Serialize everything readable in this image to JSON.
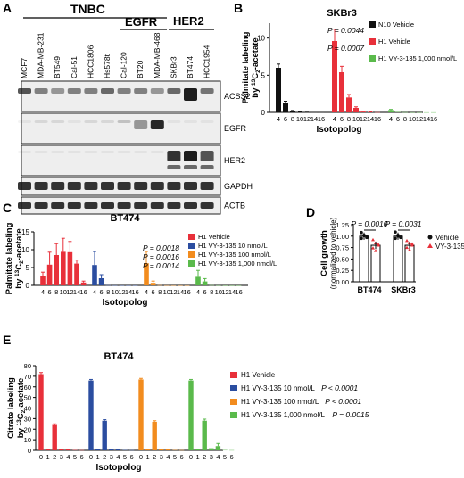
{
  "panels": {
    "A": {
      "letter": "A",
      "groups": [
        "TNBC",
        "EGFR",
        "HER2"
      ],
      "cell_lines": [
        "MCF7",
        "MDA-MB-231",
        "BT549",
        "Cal-51",
        "HCC1806",
        "Hs578t",
        "Cal-120",
        "BT20",
        "MDA-MB-468",
        "SKBr3",
        "BT474",
        "HCC1954"
      ],
      "blots": [
        "ACSS2",
        "EGFR",
        "HER2",
        "GAPDH",
        "ACTB"
      ]
    },
    "B": {
      "letter": "B"
    },
    "C": {
      "letter": "C"
    },
    "D": {
      "letter": "D"
    },
    "E": {
      "letter": "E"
    }
  },
  "colors": {
    "black": "#111111",
    "red": "#e8303a",
    "blue": "#2b4da0",
    "orange": "#f28c1e",
    "green": "#5aba4b",
    "gray": "#aaaaaa"
  },
  "chart_data": [
    {
      "panel": "B",
      "type": "bar",
      "title": "SKBr3",
      "ylabel_pre": "Palmitate labeling",
      "ylabel_by": "by ",
      "ylabel_sup": "13",
      "ylabel_c": "C",
      "ylabel_sub": "2",
      "ylabel_post": "-acetate",
      "xlabel": "Isotopolog",
      "ylim": [
        0,
        12
      ],
      "yticks": [
        0,
        5,
        10
      ],
      "categories": [
        "4",
        "6",
        "8",
        "10",
        "12",
        "14",
        "16"
      ],
      "series": [
        {
          "name": "N10 Vehicle",
          "color": "#111111",
          "values": [
            6.0,
            1.3,
            0.2,
            0.05,
            0.02,
            0.01,
            0.01
          ],
          "errors": [
            0.5,
            0.2,
            0.05,
            0.02,
            0.01,
            0,
            0
          ]
        },
        {
          "name": "H1 Vehicle",
          "color": "#e8303a",
          "values": [
            9.6,
            5.4,
            2.0,
            0.6,
            0.1,
            0.05,
            0.02
          ],
          "errors": [
            1.6,
            0.8,
            0.4,
            0.15,
            0.05,
            0.02,
            0
          ]
        },
        {
          "name": "H1 VY-3-135 1,000 nmol/L",
          "color": "#5aba4b",
          "values": [
            0.3,
            0.05,
            0.02,
            0.01,
            0.01,
            0.01,
            0.01
          ],
          "errors": [
            0.1,
            0,
            0,
            0,
            0,
            0,
            0
          ]
        }
      ],
      "pvalues": [
        {
          "label": "P = 0.0044"
        },
        {
          "label": "P = 0.0007"
        }
      ]
    },
    {
      "panel": "C",
      "type": "bar",
      "title": "BT474",
      "ylabel_pre": "Palmitate labeling",
      "ylabel_by": "by ",
      "ylabel_sup": "13",
      "ylabel_c": "C",
      "ylabel_sub": "2",
      "ylabel_post": "-acetate",
      "xlabel": "Isotopolog",
      "ylim": [
        0,
        15
      ],
      "yticks": [
        0,
        5,
        10,
        15
      ],
      "categories": [
        "4",
        "6",
        "8",
        "10",
        "12",
        "14",
        "16"
      ],
      "series": [
        {
          "name": "H1 Vehicle",
          "color": "#e8303a",
          "values": [
            2.5,
            5.8,
            8.5,
            9.4,
            9.3,
            6.1,
            0.8
          ],
          "errors": [
            1.2,
            3.5,
            3.2,
            3.8,
            3.0,
            1.0,
            0.4
          ]
        },
        {
          "name": "H1 VY-3-135 10 nmol/L",
          "color": "#2b4da0",
          "values": [
            5.7,
            2.0,
            0.05,
            0.02,
            0.01,
            0.01,
            0.01
          ],
          "errors": [
            3.8,
            1.0,
            0,
            0,
            0,
            0,
            0
          ]
        },
        {
          "name": "H1 VY-3-135 100 nmol/L",
          "color": "#f28c1e",
          "values": [
            6.2,
            0.7,
            0.05,
            0.02,
            0.01,
            0.01,
            0.01
          ],
          "errors": [
            3.3,
            0.5,
            0,
            0,
            0,
            0,
            0
          ]
        },
        {
          "name": "H1 VY-3-135 1,000 nmol/L",
          "color": "#5aba4b",
          "values": [
            2.4,
            1.1,
            0.05,
            0.02,
            0.01,
            0.01,
            0.01
          ],
          "errors": [
            1.8,
            0.8,
            0,
            0,
            0,
            0,
            0
          ]
        }
      ],
      "pvalues": [
        {
          "label": "P = 0.0018"
        },
        {
          "label": "P = 0.0016"
        },
        {
          "label": "P = 0.0014"
        }
      ]
    },
    {
      "panel": "D",
      "type": "bar",
      "ylabel": "Cell growth",
      "ylabel2": "(normalized to vehicle)",
      "ylim": [
        0,
        1.25
      ],
      "yticks": [
        "0.00",
        "0.25",
        "0.50",
        "0.75",
        "1.00",
        "1.25"
      ],
      "ytick_values": [
        0,
        0.25,
        0.5,
        0.75,
        1.0,
        1.25
      ],
      "categories": [
        "BT474",
        "SKBr3"
      ],
      "series": [
        {
          "name": "Vehicle",
          "color": "#111111",
          "values": [
            1.0,
            1.0
          ],
          "points": [
            [
              1.08,
              1.02,
              0.97,
              0.95,
              1.01,
              0.99
            ],
            [
              1.09,
              1.02,
              0.97,
              0.95,
              1.0,
              0.98
            ]
          ]
        },
        {
          "name": "VY-3-135",
          "color": "#e8303a",
          "values": [
            0.8,
            0.8
          ],
          "points": [
            [
              0.92,
              0.85,
              0.8,
              0.74,
              0.68,
              0.82
            ],
            [
              0.9,
              0.85,
              0.8,
              0.75,
              0.7,
              0.83
            ]
          ]
        }
      ],
      "pvalues": [
        {
          "label": "P = 0.0010"
        },
        {
          "label": "P = 0.0031"
        }
      ]
    },
    {
      "panel": "E",
      "type": "bar",
      "title": "BT474",
      "ylabel_pre": "Citrate labeling",
      "ylabel_by": "by ",
      "ylabel_sup": "13",
      "ylabel_c": "C",
      "ylabel_sub": "2",
      "ylabel_post": "-acetate",
      "xlabel": "Isotopolog",
      "ylim": [
        0,
        80
      ],
      "yticks": [
        0,
        10,
        20,
        30,
        40,
        50,
        60,
        70,
        80
      ],
      "categories": [
        "0",
        "1",
        "2",
        "3",
        "4",
        "5",
        "6"
      ],
      "series": [
        {
          "name": "H1 Vehicle",
          "color": "#e8303a",
          "pvalue": "",
          "values": [
            72,
            1.0,
            24,
            1.0,
            1.5,
            0.3,
            0.2
          ],
          "errors": [
            1.5,
            0,
            1.0,
            0,
            0,
            0,
            0
          ]
        },
        {
          "name": "H1 VY-3-135 10 nmol/L",
          "color": "#2b4da0",
          "pvalue": "P < 0.0001",
          "values": [
            66,
            1.5,
            28,
            1.5,
            1.5,
            0.3,
            0.2
          ],
          "errors": [
            1.0,
            0,
            1.0,
            0,
            0,
            0,
            0
          ]
        },
        {
          "name": "H1 VY-3-135 100 nmol/L",
          "color": "#f28c1e",
          "pvalue": "P < 0.0001",
          "values": [
            67,
            1.5,
            27,
            1.2,
            1.5,
            0.3,
            0.2
          ],
          "errors": [
            1.0,
            0,
            1.0,
            0,
            0,
            0,
            0
          ]
        },
        {
          "name": "H1 VY-3-135 1,000 nmol/L",
          "color": "#5aba4b",
          "pvalue": "P = 0.0015",
          "values": [
            66,
            1.5,
            28,
            2.0,
            4.0,
            0.3,
            0.2
          ],
          "errors": [
            1.0,
            0,
            1.5,
            0,
            2.5,
            0,
            0
          ]
        }
      ]
    }
  ]
}
